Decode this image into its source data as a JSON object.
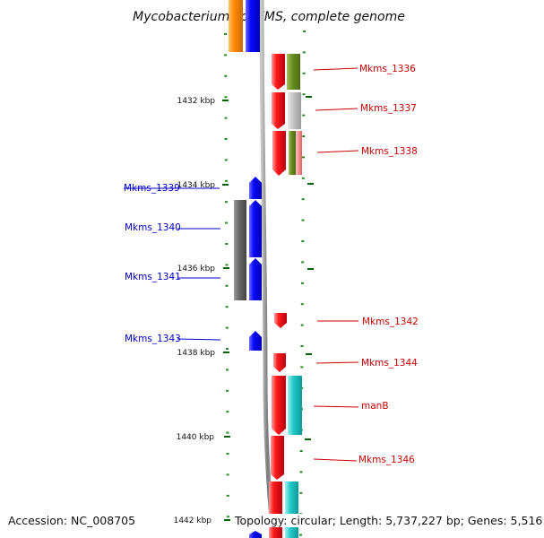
{
  "title": "Mycobacterium sp. KMS, complete genome",
  "footer": {
    "accession": "Accession: NC_008705",
    "topology": "Topology: circular; Length: 5,737,227 bp; Genes: 5,516"
  },
  "scale_labels": [
    "1432 kbp",
    "1434 kbp",
    "1436 kbp",
    "1438 kbp",
    "1440 kbp",
    "1442 kbp"
  ],
  "colors": {
    "forward_cds": "#e8001c",
    "reverse_cds": "#0000ee",
    "forward_label": "#cc0000",
    "reverse_label": "#0000cc",
    "backbone": "#808080",
    "ticks": "#006400",
    "cog_green": "#6b8e23",
    "cog_gray": "#b8b8b8",
    "cog_cyan": "#20c8c8",
    "cog_salmon": "#f08080",
    "cog_orange": "#ff8c00",
    "cog_dark_gray": "#666666"
  },
  "genes": {
    "forward": [
      {
        "name": "Mkms_1336"
      },
      {
        "name": "Mkms_1337"
      },
      {
        "name": "Mkms_1338"
      },
      {
        "name": "Mkms_1342"
      },
      {
        "name": "Mkms_1344"
      },
      {
        "name": "manB"
      },
      {
        "name": "Mkms_1346"
      }
    ],
    "reverse": [
      {
        "name": "Mkms_1339"
      },
      {
        "name": "Mkms_1340"
      },
      {
        "name": "Mkms_1341"
      },
      {
        "name": "Mkms_1343"
      }
    ]
  }
}
